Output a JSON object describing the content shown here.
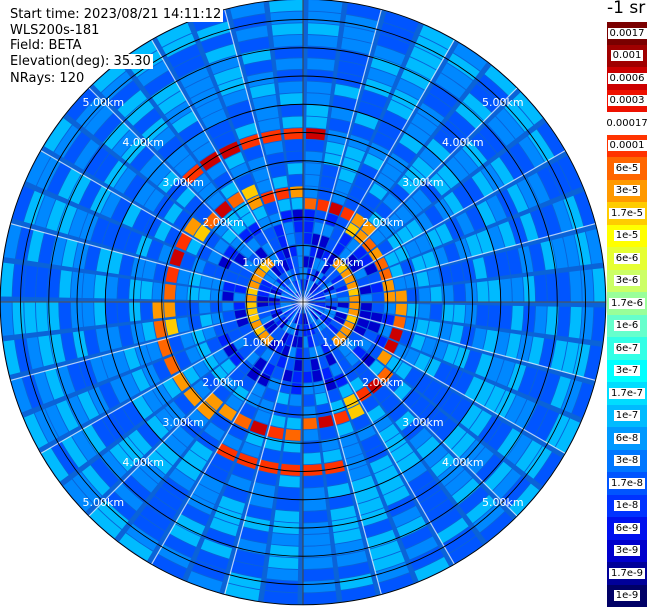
{
  "info": {
    "start_time": "Start time: 2023/08/21 14:11:12",
    "instrument": "WLS200s-181",
    "field": "Field: BETA",
    "elevation": "Elevation(deg): 35.30",
    "nrays": "NRays: 120"
  },
  "units_label": "-1 sr",
  "range_labels": [
    "1.00km",
    "2.00km",
    "3.00km",
    "4.00km",
    "5.00km"
  ],
  "colorbar": {
    "labels": [
      "0.0017",
      "0.001",
      "0.0006",
      "0.0003",
      "0.00017",
      "0.0001",
      "6e-5",
      "3e-5",
      "1.7e-5",
      "1e-5",
      "6e-6",
      "3e-6",
      "1.7e-6",
      "1e-6",
      "6e-7",
      "3e-7",
      "1.7e-7",
      "1e-7",
      "6e-8",
      "3e-8",
      "1.7e-8",
      "1e-8",
      "6e-9",
      "3e-9",
      "1.7e-9",
      "1e-9"
    ],
    "colors": [
      "#7a0000",
      "#a00000",
      "#cc0000",
      "#ee1100",
      "#ffffff",
      "#ff3300",
      "#ff6600",
      "#ff9900",
      "#ffcc00",
      "#ffff00",
      "#e6ff33",
      "#ccff66",
      "#99ff99",
      "#66ffcc",
      "#33ffe6",
      "#00ffff",
      "#00ddff",
      "#00bbff",
      "#0099ff",
      "#0077ff",
      "#0055ff",
      "#0033ff",
      "#0011ee",
      "#0000cc",
      "#000099",
      "#000066"
    ]
  },
  "display": {
    "background_color": "#0a63d8",
    "ring_color": "#000000",
    "colormap": [
      "#000066",
      "#0000cc",
      "#0022ff",
      "#0055ff",
      "#0088ff",
      "#00bbff",
      "#00ffff",
      "#66ffcc",
      "#ccff66",
      "#ffff00",
      "#ffcc00",
      "#ff9900",
      "#ff6600",
      "#ff3300",
      "#cc0000",
      "#800000"
    ]
  }
}
